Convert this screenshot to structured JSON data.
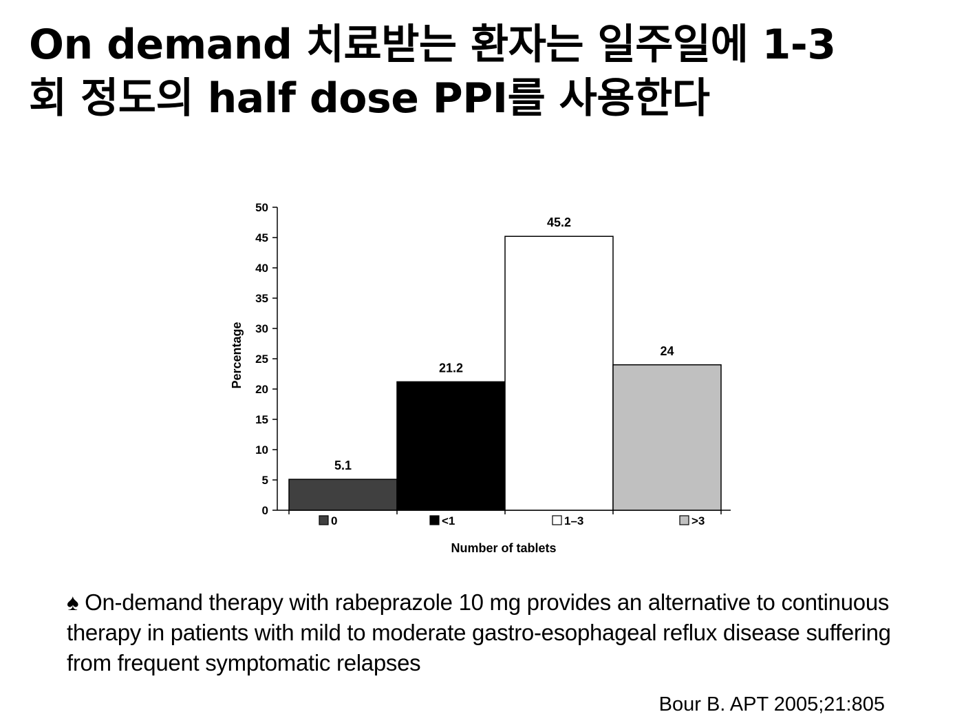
{
  "slide": {
    "title_line1": "On demand 치료받는 환자는 일주일에 1-3",
    "title_line2": "회 정도의 half dose PPI를 사용한다",
    "bullet_symbol": "♠",
    "note": "On-demand therapy with rabeprazole 10 mg provides an alternative to continuous therapy in patients with mild to moderate gastro-esophageal reflux disease suffering from frequent symptomatic relapses",
    "citation": "Bour B. APT 2005;21:805"
  },
  "chart_data": {
    "type": "bar",
    "categories": [
      "0",
      "<1",
      "1–3",
      ">3"
    ],
    "values": [
      5.1,
      21.2,
      45.2,
      24
    ],
    "data_labels": [
      "5.1",
      "21.2",
      "45.2",
      "24"
    ],
    "colors": [
      "#404040",
      "#000000",
      "#ffffff",
      "#c0c0c0"
    ],
    "xlabel": "Number of tablets",
    "ylabel": "Percentage",
    "ylim": [
      0,
      50
    ],
    "yticks": [
      0,
      5,
      10,
      15,
      20,
      25,
      30,
      35,
      40,
      45,
      50
    ],
    "grid": false,
    "legend": "inline-below-bars"
  }
}
